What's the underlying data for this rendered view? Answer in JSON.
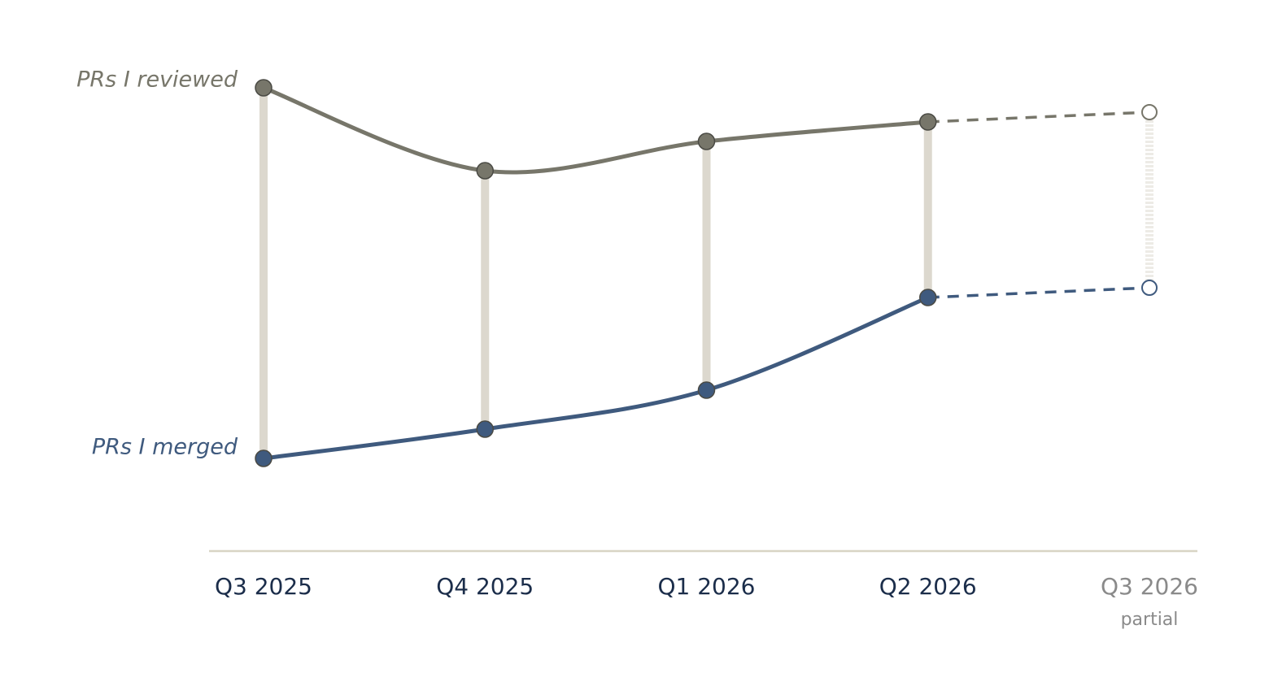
{
  "chart_data": {
    "type": "line",
    "categories": [
      "Q3 2025",
      "Q4 2025",
      "Q1 2026",
      "Q2 2026",
      "Q3 2026"
    ],
    "x_sublabels": [
      null,
      null,
      null,
      null,
      "partial"
    ],
    "dashed_after": 3,
    "ylim": [
      0,
      100
    ],
    "connector_color": "#dcd8ce",
    "series": [
      {
        "name": "PRs I reviewed",
        "color": "#77766a",
        "values": [
          95,
          78,
          84,
          88,
          90
        ]
      },
      {
        "name": "PRs I merged",
        "color": "#3f5a7e",
        "values": [
          19,
          25,
          33,
          52,
          54
        ]
      }
    ]
  }
}
